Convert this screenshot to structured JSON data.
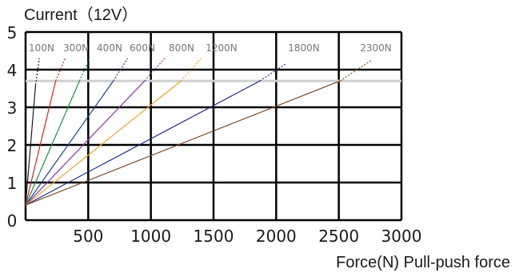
{
  "chart_data": {
    "type": "line",
    "title": "Current（12V）",
    "xlabel": "Force(N) Pull-push force",
    "ylabel": "",
    "xlim": [
      0,
      3000
    ],
    "ylim": [
      0,
      5
    ],
    "x_ticks": [
      "500",
      "1000",
      "1500",
      "2000",
      "2500",
      "3000"
    ],
    "y_ticks": [
      "0",
      "1",
      "2",
      "3",
      "4",
      "5"
    ],
    "grid": true,
    "reference_line_y": 3.7,
    "start_point": {
      "x": 0,
      "y": 0.4
    },
    "series": [
      {
        "name": "100N",
        "color": "#1a1a1a",
        "solid_end": {
          "x": 80,
          "y": 3.6
        },
        "dotted_end": {
          "x": 110,
          "y": 4.3
        }
      },
      {
        "name": "300N",
        "color": "#e02020",
        "solid_end": {
          "x": 240,
          "y": 3.7
        },
        "dotted_end": {
          "x": 315,
          "y": 4.3
        }
      },
      {
        "name": "400N",
        "color": "#119944",
        "solid_end": {
          "x": 430,
          "y": 3.7
        },
        "dotted_end": {
          "x": 510,
          "y": 4.3
        }
      },
      {
        "name": "600N",
        "color": "#1a3fa0",
        "solid_end": {
          "x": 700,
          "y": 3.7
        },
        "dotted_end": {
          "x": 815,
          "y": 4.3
        }
      },
      {
        "name": "800N",
        "color": "#8833aa",
        "solid_end": {
          "x": 950,
          "y": 3.7
        },
        "dotted_end": {
          "x": 1110,
          "y": 4.3
        }
      },
      {
        "name": "1200N",
        "color": "#f5a623",
        "solid_end": {
          "x": 1240,
          "y": 3.7
        },
        "dotted_end": {
          "x": 1400,
          "y": 4.3
        }
      },
      {
        "name": "1800N",
        "color": "#1f2d8a",
        "solid_end": {
          "x": 1870,
          "y": 3.7
        },
        "dotted_end": {
          "x": 2075,
          "y": 4.15
        }
      },
      {
        "name": "2300N",
        "color": "#7a4a2a",
        "solid_end": {
          "x": 2510,
          "y": 3.7
        },
        "dotted_end": {
          "x": 2760,
          "y": 4.25
        }
      }
    ]
  }
}
